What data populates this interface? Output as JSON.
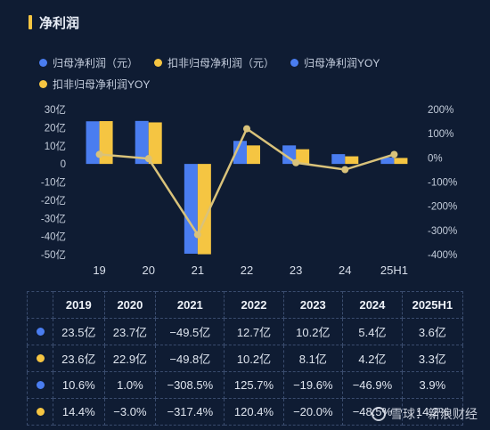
{
  "title": "净利润",
  "colors": {
    "blue": "#4a7df0",
    "yellow": "#f5c542",
    "line": "#d9c27a",
    "accent": "#f5c542"
  },
  "legend": [
    {
      "label": "归母净利润（元）",
      "color": "#4a7df0"
    },
    {
      "label": "扣非归母净利润（元）",
      "color": "#f5c542"
    },
    {
      "label": "归母净利润YOY",
      "color": "#4a7df0"
    },
    {
      "label": "扣非归母净利润YOY",
      "color": "#f5c542"
    }
  ],
  "chart_data": {
    "type": "bar",
    "categories": [
      "19",
      "20",
      "21",
      "22",
      "23",
      "24",
      "25H1"
    ],
    "series": [
      {
        "name": "归母净利润（元）",
        "type": "bar",
        "axis": "left",
        "values": [
          23.5,
          23.7,
          -49.5,
          12.7,
          10.2,
          5.4,
          3.6
        ]
      },
      {
        "name": "扣非归母净利润（元）",
        "type": "bar",
        "axis": "left",
        "values": [
          23.6,
          22.9,
          -49.8,
          10.2,
          8.1,
          4.2,
          3.3
        ]
      },
      {
        "name": "归母净利润YOY",
        "type": "line",
        "axis": "right",
        "values": [
          10.6,
          1.0,
          -308.5,
          125.7,
          -19.6,
          -46.9,
          3.9
        ]
      },
      {
        "name": "扣非归母净利润YOY",
        "type": "line",
        "axis": "right",
        "values": [
          14.4,
          -3.0,
          -317.4,
          120.4,
          -20.0,
          -48.5,
          14.2
        ]
      }
    ],
    "y_left": {
      "ylim": [
        -50,
        30
      ],
      "ticks": [
        30,
        20,
        10,
        0,
        -10,
        -20,
        -30,
        -40,
        -50
      ],
      "tick_labels": [
        "30亿",
        "20亿",
        "10亿",
        "0",
        "-10亿",
        "-20亿",
        "-30亿",
        "-40亿",
        "-50亿"
      ]
    },
    "y_right": {
      "ylim": [
        -400,
        200
      ],
      "ticks": [
        200,
        100,
        0,
        -100,
        -200,
        -300,
        -400
      ],
      "tick_labels": [
        "200%",
        "100%",
        "0%",
        "-100%",
        "-200%",
        "-300%",
        "-400%"
      ]
    },
    "grid": false,
    "legend_position": "top"
  },
  "table": {
    "headers": [
      "2019",
      "2020",
      "2021",
      "2022",
      "2023",
      "2024",
      "2025H1"
    ],
    "rows": [
      {
        "color": "#4a7df0",
        "cells": [
          "23.5亿",
          "23.7亿",
          "−49.5亿",
          "12.7亿",
          "10.2亿",
          "5.4亿",
          "3.6亿"
        ]
      },
      {
        "color": "#f5c542",
        "cells": [
          "23.6亿",
          "22.9亿",
          "−49.8亿",
          "10.2亿",
          "8.1亿",
          "4.2亿",
          "3.3亿"
        ]
      },
      {
        "color": "#4a7df0",
        "cells": [
          "10.6%",
          "1.0%",
          "−308.5%",
          "125.7%",
          "−19.6%",
          "−46.9%",
          "3.9%"
        ]
      },
      {
        "color": "#f5c542",
        "cells": [
          "14.4%",
          "−3.0%",
          "−317.4%",
          "120.4%",
          "−20.0%",
          "−48.5%",
          "14.2%"
        ]
      }
    ]
  },
  "watermark": "雪球：新浪财经"
}
